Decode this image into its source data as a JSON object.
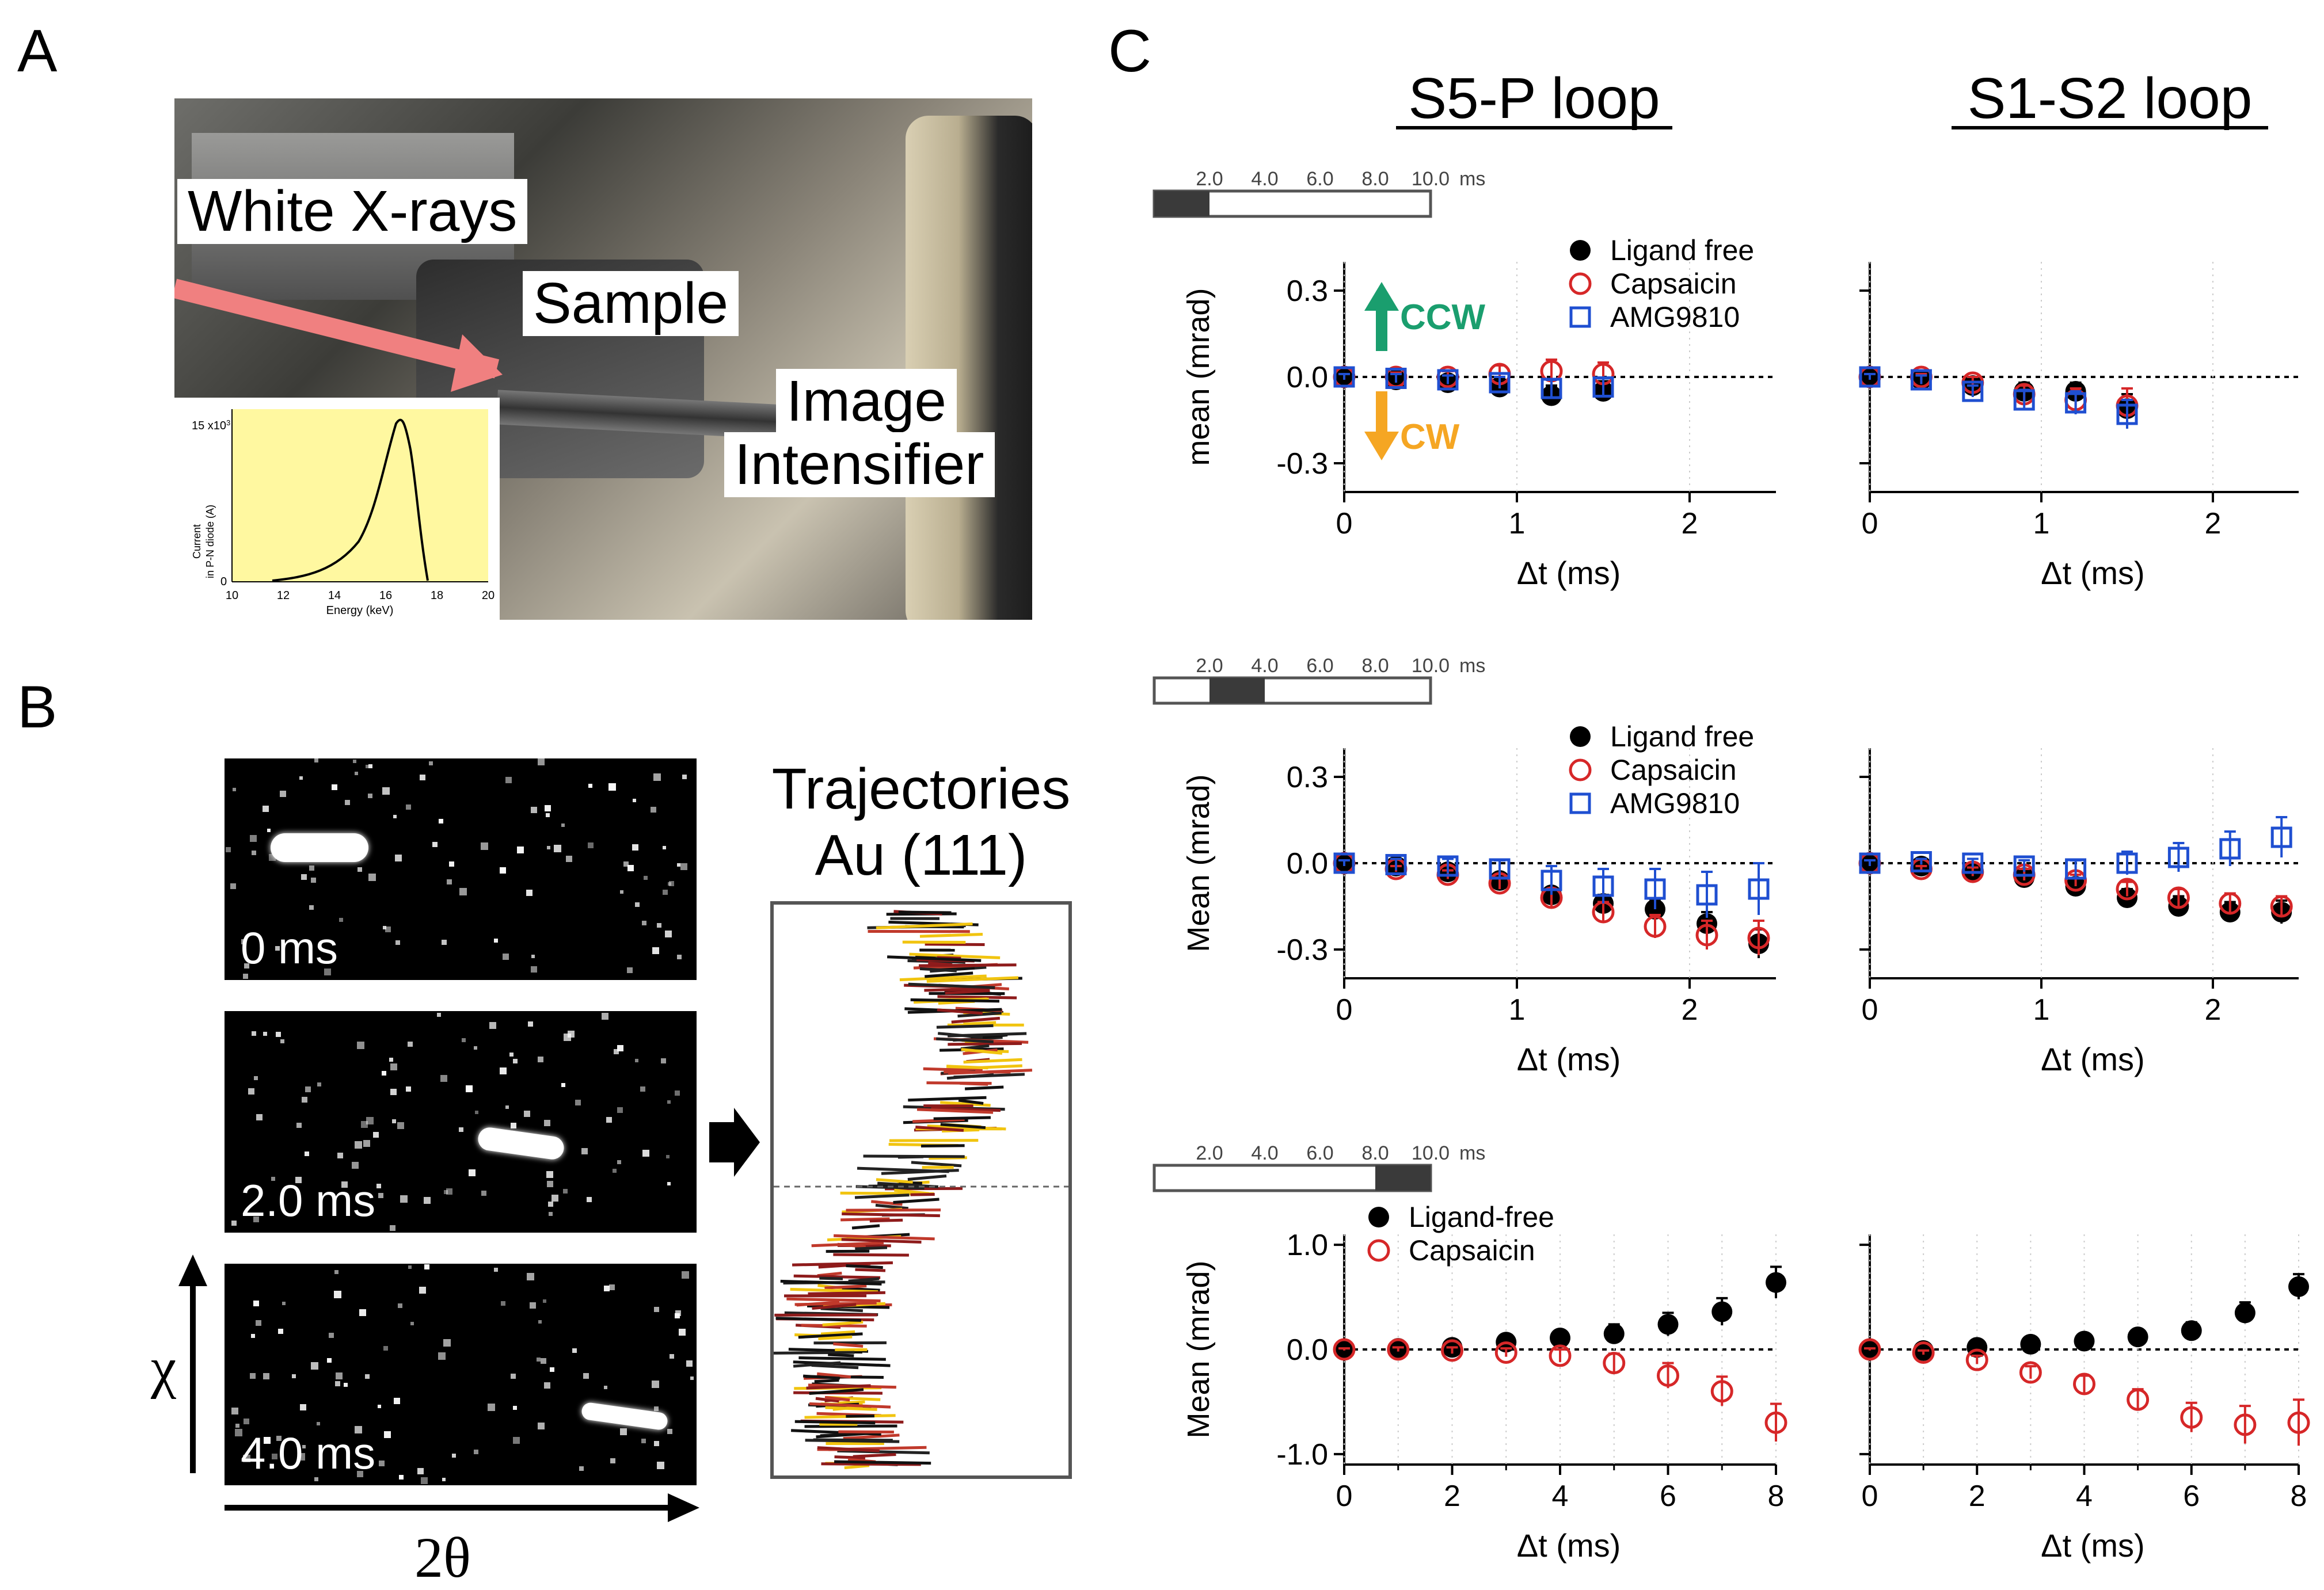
{
  "panels": {
    "a": "A",
    "b": "B",
    "c": "C"
  },
  "panel_a": {
    "labels": {
      "xrays": "White X-rays",
      "sample": "Sample",
      "intensifier_1": "Image",
      "intensifier_2": "Intensifier"
    },
    "inset": {
      "ylabel_1": "Current",
      "ylabel_2": "in P-N diode (A)",
      "xlabel": "Energy (keV)",
      "ytick_top": "15 x10",
      "ytick_exp": "3",
      "ytick_zero": "0",
      "xticks": [
        "10",
        "12",
        "14",
        "16",
        "18",
        "20"
      ]
    },
    "colors": {
      "arrow": "#f08080",
      "inset_bg": "#fff8a0"
    }
  },
  "panel_b": {
    "times": [
      "0 ms",
      "2.0 ms",
      "4.0 ms"
    ],
    "traj_title_1": "Trajectories",
    "traj_title_2": "Au (111)",
    "chi": "χ",
    "two_theta": "2θ"
  },
  "panel_c": {
    "col_titles": [
      "S5-P loop",
      "S1-S2 loop"
    ],
    "time_bar": {
      "ticks": [
        "2.0",
        "4.0",
        "6.0",
        "8.0",
        "10.0"
      ],
      "unit": "ms"
    },
    "xlabel": "Δt (ms)",
    "ylabel_top": "mean  (mrad)",
    "ylabel_mid": "Mean (mrad)",
    "ylabel_bot": "Mean (mrad)",
    "arrows": {
      "ccw": "CCW",
      "cw": "CW",
      "ccw_color": "#1a9e6e",
      "cw_color": "#f5a623"
    },
    "legends": {
      "row1": [
        "Ligand free",
        "Capsaicin",
        "AMG9810"
      ],
      "row2": [
        "Ligand free",
        "Capsaicin",
        "AMG9810"
      ],
      "row3": [
        "Ligand-free",
        "Capsaicin"
      ]
    },
    "ticks": {
      "row1_y": [
        "0.3",
        "0.0",
        "-0.3"
      ],
      "row2_y": [
        "0.3",
        "0.0",
        "-0.3"
      ],
      "row3_y": [
        "1.0",
        "0.0",
        "-1.0"
      ],
      "row1_x": [
        "0",
        "1",
        "2"
      ],
      "row3_x": [
        "0",
        "2",
        "4",
        "6",
        "8"
      ]
    },
    "series_colors": {
      "ligand": "#000000",
      "capsaicin": "#d62728",
      "amg": "#1f4fd1"
    }
  },
  "chart_data": [
    {
      "type": "scatter",
      "row": 1,
      "panel": "S5-P loop",
      "window": "0-2.0 ms",
      "xlim": [
        0,
        2.5
      ],
      "ylim": [
        -0.4,
        0.4
      ],
      "series": [
        {
          "name": "Ligand free",
          "x": [
            0,
            0.3,
            0.6,
            0.9,
            1.2,
            1.5
          ],
          "y": [
            0,
            -0.01,
            -0.02,
            -0.035,
            -0.065,
            -0.05
          ],
          "err": [
            0.01,
            0.015,
            0.02,
            0.025,
            0.035,
            0.035
          ]
        },
        {
          "name": "Capsaicin",
          "x": [
            0,
            0.3,
            0.6,
            0.9,
            1.2,
            1.5
          ],
          "y": [
            0,
            0,
            0.0,
            0.01,
            0.02,
            0.01
          ],
          "err": [
            0.01,
            0.015,
            0.02,
            0.03,
            0.04,
            0.04
          ]
        },
        {
          "name": "AMG9810",
          "x": [
            0,
            0.3,
            0.6,
            0.9,
            1.2,
            1.5
          ],
          "y": [
            0,
            -0.005,
            -0.01,
            -0.02,
            -0.04,
            -0.035
          ],
          "err": [
            0.01,
            0.015,
            0.015,
            0.02,
            0.03,
            0.03
          ]
        }
      ]
    },
    {
      "type": "scatter",
      "row": 1,
      "panel": "S1-S2 loop",
      "window": "0-2.0 ms",
      "xlim": [
        0,
        2.5
      ],
      "ylim": [
        -0.4,
        0.4
      ],
      "series": [
        {
          "name": "Ligand free",
          "x": [
            0,
            0.3,
            0.6,
            0.9,
            1.2,
            1.5
          ],
          "y": [
            0,
            -0.01,
            -0.03,
            -0.05,
            -0.05,
            -0.11
          ],
          "err": [
            0.01,
            0.01,
            0.02,
            0.03,
            0.03,
            0.05
          ]
        },
        {
          "name": "Capsaicin",
          "x": [
            0,
            0.3,
            0.6,
            0.9,
            1.2,
            1.5
          ],
          "y": [
            0,
            0,
            -0.02,
            -0.06,
            -0.08,
            -0.1
          ],
          "err": [
            0.01,
            0.01,
            0.02,
            0.03,
            0.04,
            0.06
          ]
        },
        {
          "name": "AMG9810",
          "x": [
            0,
            0.3,
            0.6,
            0.9,
            1.2,
            1.5
          ],
          "y": [
            0,
            -0.01,
            -0.05,
            -0.08,
            -0.09,
            -0.13
          ],
          "err": [
            0.01,
            0.015,
            0.02,
            0.035,
            0.04,
            0.05
          ]
        }
      ]
    },
    {
      "type": "scatter",
      "row": 2,
      "panel": "S5-P loop",
      "window": "2.0-4.0 ms",
      "xlim": [
        0,
        2.5
      ],
      "ylim": [
        -0.4,
        0.4
      ],
      "series": [
        {
          "name": "Ligand free",
          "x": [
            0,
            0.3,
            0.6,
            0.9,
            1.2,
            1.5,
            1.8,
            2.1,
            2.4
          ],
          "y": [
            0,
            -0.01,
            -0.03,
            -0.06,
            -0.11,
            -0.14,
            -0.16,
            -0.21,
            -0.28
          ],
          "err": [
            0.01,
            0.01,
            0.015,
            0.02,
            0.025,
            0.03,
            0.035,
            0.04,
            0.05
          ]
        },
        {
          "name": "Capsaicin",
          "x": [
            0,
            0.3,
            0.6,
            0.9,
            1.2,
            1.5,
            1.8,
            2.1,
            2.4
          ],
          "y": [
            0,
            -0.02,
            -0.04,
            -0.07,
            -0.12,
            -0.17,
            -0.22,
            -0.25,
            -0.26
          ],
          "err": [
            0.01,
            0.01,
            0.015,
            0.02,
            0.03,
            0.035,
            0.04,
            0.05,
            0.06
          ]
        },
        {
          "name": "AMG9810",
          "x": [
            0,
            0.3,
            0.6,
            0.9,
            1.2,
            1.5,
            1.8,
            2.1,
            2.4
          ],
          "y": [
            0,
            -0.005,
            -0.01,
            -0.02,
            -0.06,
            -0.08,
            -0.09,
            -0.11,
            -0.09
          ],
          "err": [
            0.01,
            0.02,
            0.025,
            0.03,
            0.05,
            0.06,
            0.07,
            0.08,
            0.09
          ]
        }
      ]
    },
    {
      "type": "scatter",
      "row": 2,
      "panel": "S1-S2 loop",
      "window": "2.0-4.0 ms",
      "xlim": [
        0,
        2.5
      ],
      "ylim": [
        -0.4,
        0.4
      ],
      "series": [
        {
          "name": "Ligand free",
          "x": [
            0,
            0.3,
            0.6,
            0.9,
            1.2,
            1.5,
            1.8,
            2.1,
            2.4
          ],
          "y": [
            0,
            -0.01,
            -0.03,
            -0.05,
            -0.08,
            -0.12,
            -0.15,
            -0.17,
            -0.17
          ],
          "err": [
            0.01,
            0.01,
            0.015,
            0.02,
            0.025,
            0.03,
            0.035,
            0.035,
            0.04
          ]
        },
        {
          "name": "Capsaicin",
          "x": [
            0,
            0.3,
            0.6,
            0.9,
            1.2,
            1.5,
            1.8,
            2.1,
            2.4
          ],
          "y": [
            0,
            -0.02,
            -0.03,
            -0.04,
            -0.06,
            -0.09,
            -0.12,
            -0.14,
            -0.15
          ],
          "err": [
            0.01,
            0.01,
            0.015,
            0.02,
            0.02,
            0.025,
            0.03,
            0.035,
            0.035
          ]
        },
        {
          "name": "AMG9810",
          "x": [
            0,
            0.3,
            0.6,
            0.9,
            1.2,
            1.5,
            1.8,
            2.1,
            2.4
          ],
          "y": [
            0,
            0.005,
            0.0,
            -0.01,
            -0.02,
            0.0,
            0.02,
            0.05,
            0.09
          ],
          "err": [
            0.01,
            0.01,
            0.015,
            0.02,
            0.03,
            0.04,
            0.05,
            0.06,
            0.07
          ]
        }
      ]
    },
    {
      "type": "scatter",
      "row": 3,
      "panel": "S5-P loop",
      "window": "8.0-10.0 ms",
      "xlim": [
        0,
        8
      ],
      "ylim": [
        -1.1,
        1.1
      ],
      "series": [
        {
          "name": "Ligand-free",
          "x": [
            0,
            1,
            2,
            3,
            4,
            5,
            6,
            7,
            8
          ],
          "y": [
            0,
            0.01,
            0.02,
            0.07,
            0.11,
            0.15,
            0.24,
            0.36,
            0.64
          ],
          "err": [
            0.01,
            0.02,
            0.03,
            0.05,
            0.07,
            0.09,
            0.11,
            0.13,
            0.15
          ]
        },
        {
          "name": "Capsaicin",
          "x": [
            0,
            1,
            2,
            3,
            4,
            5,
            6,
            7,
            8
          ],
          "y": [
            0,
            0.0,
            -0.01,
            -0.03,
            -0.06,
            -0.13,
            -0.25,
            -0.4,
            -0.7
          ],
          "err": [
            0.01,
            0.02,
            0.03,
            0.04,
            0.06,
            0.09,
            0.12,
            0.14,
            0.18
          ]
        }
      ]
    },
    {
      "type": "scatter",
      "row": 3,
      "panel": "S1-S2 loop",
      "window": "8.0-10.0 ms",
      "xlim": [
        0,
        8
      ],
      "ylim": [
        -1.1,
        1.1
      ],
      "series": [
        {
          "name": "Ligand-free",
          "x": [
            0,
            1,
            2,
            3,
            4,
            5,
            6,
            7,
            8
          ],
          "y": [
            0,
            -0.01,
            0.02,
            0.05,
            0.08,
            0.12,
            0.18,
            0.35,
            0.6
          ],
          "err": [
            0.01,
            0.02,
            0.03,
            0.04,
            0.05,
            0.06,
            0.08,
            0.1,
            0.12
          ]
        },
        {
          "name": "Capsaicin",
          "x": [
            0,
            1,
            2,
            3,
            4,
            5,
            6,
            7,
            8
          ],
          "y": [
            0,
            -0.03,
            -0.1,
            -0.22,
            -0.33,
            -0.48,
            -0.65,
            -0.72,
            -0.7
          ],
          "err": [
            0.01,
            0.02,
            0.04,
            0.06,
            0.08,
            0.1,
            0.14,
            0.18,
            0.22
          ]
        }
      ]
    }
  ]
}
